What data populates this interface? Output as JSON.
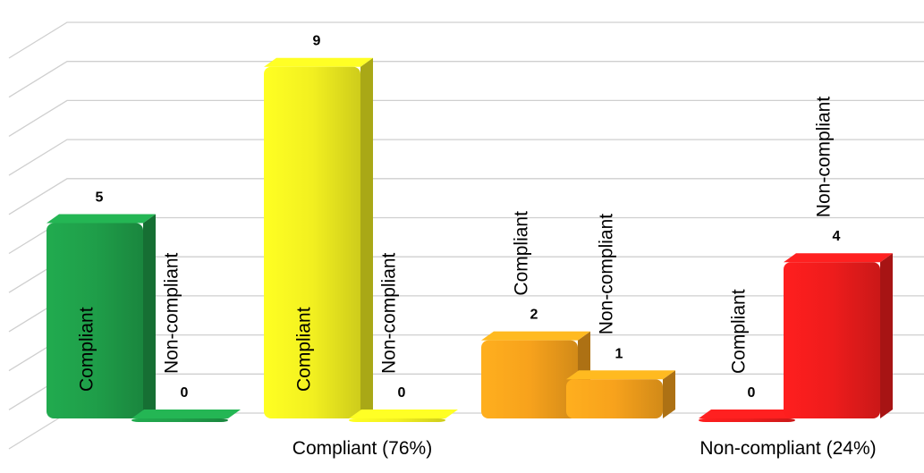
{
  "chart_data": {
    "type": "bar3d",
    "super_categories": [
      "Compliant (76%)",
      "Non-compliant (24%)"
    ],
    "categories": [
      "Compliant",
      "Non-compliant",
      "Compliant",
      "Non-compliant",
      "Compliant",
      "Non-compliant",
      "Compliant",
      "Non-compliant"
    ],
    "values": [
      5,
      0,
      9,
      0,
      2,
      1,
      0,
      4
    ],
    "colors": [
      "#1f9e49",
      "#1f9e49",
      "#f2f020",
      "#f2f020",
      "#f7a21c",
      "#f7a21c",
      "#ee1c1c",
      "#ee1c1c"
    ],
    "ylim": [
      0,
      10
    ],
    "yticks": [
      0,
      1,
      2,
      3,
      4,
      5,
      6,
      7,
      8,
      9,
      10
    ],
    "grid": true
  }
}
